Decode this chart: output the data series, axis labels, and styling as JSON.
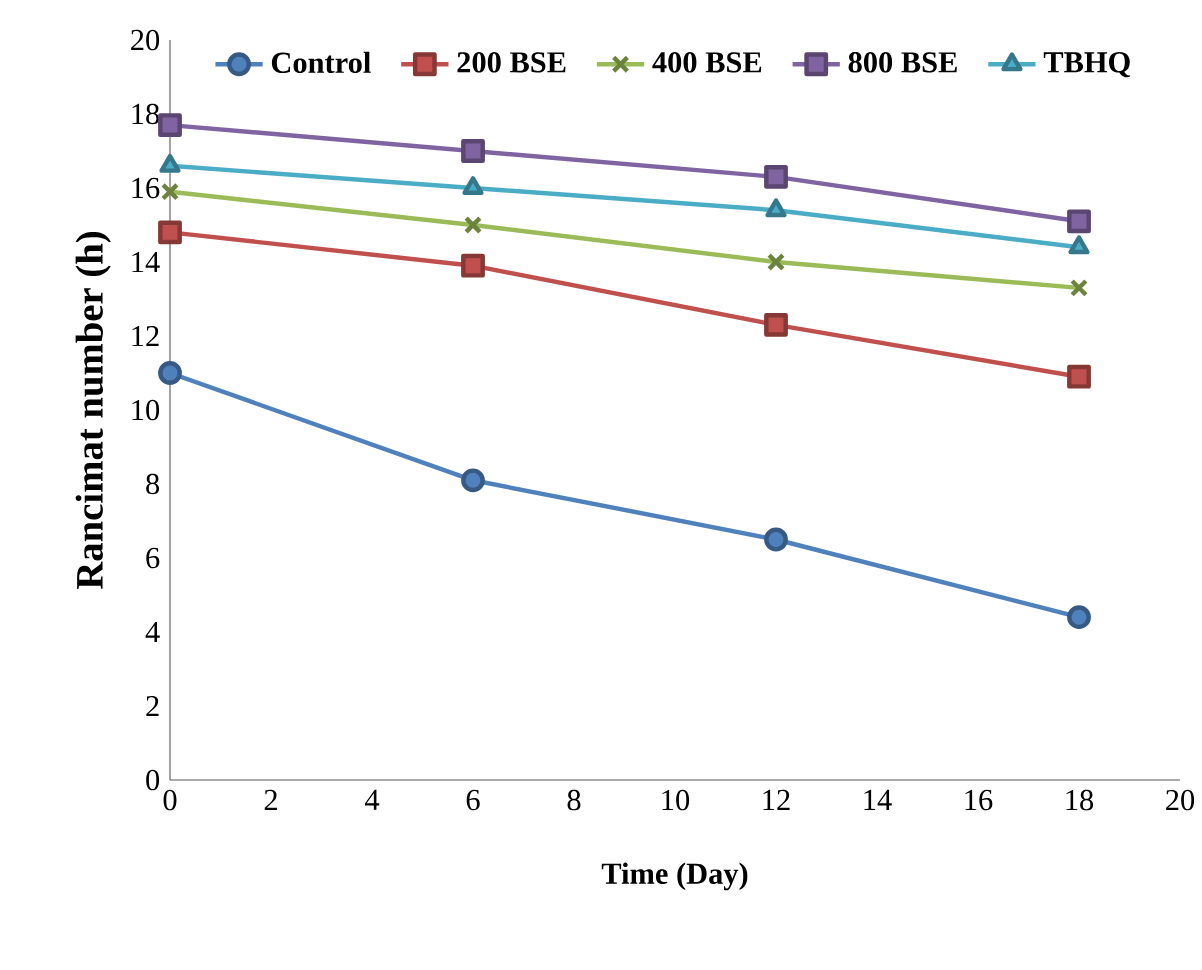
{
  "chart_data": {
    "type": "line",
    "xlabel": "Time (Day)",
    "ylabel": "Rancimat number (h)",
    "x": [
      0,
      6,
      12,
      18
    ],
    "series": [
      {
        "name": "Control",
        "color": "#4f81bd",
        "marker": "circle",
        "values": [
          11.0,
          8.1,
          6.5,
          4.4
        ]
      },
      {
        "name": "200 BSE",
        "color": "#c0504d",
        "marker": "square",
        "values": [
          14.8,
          13.9,
          12.3,
          10.9
        ]
      },
      {
        "name": "400 BSE",
        "color": "#9bbb59",
        "marker": "cross",
        "values": [
          15.9,
          15.0,
          14.0,
          13.3
        ]
      },
      {
        "name": "800 BSE",
        "color": "#8064a2",
        "marker": "square",
        "values": [
          17.7,
          17.0,
          16.3,
          15.1
        ]
      },
      {
        "name": "TBHQ",
        "color": "#4bacc6",
        "marker": "triangle",
        "values": [
          16.6,
          16.0,
          15.4,
          14.4
        ]
      }
    ],
    "xlim": [
      0,
      20
    ],
    "xticks": [
      0,
      2,
      4,
      6,
      8,
      10,
      12,
      14,
      16,
      18,
      20
    ],
    "ylim": [
      0,
      20
    ],
    "yticks": [
      0,
      2,
      4,
      6,
      8,
      10,
      12,
      14,
      16,
      18,
      20
    ],
    "grid": false,
    "legend": "top"
  }
}
